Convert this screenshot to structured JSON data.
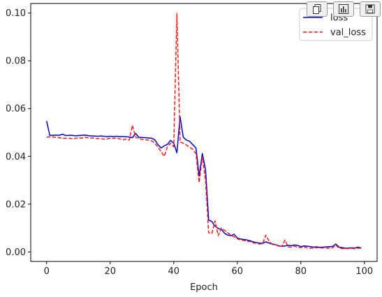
{
  "toolbar": {
    "buttons": [
      {
        "icon": "copy-icon"
      },
      {
        "icon": "bar-chart-icon"
      },
      {
        "icon": "save-icon"
      }
    ]
  },
  "chart_data": {
    "type": "line",
    "title": "",
    "xlabel": "Epoch",
    "ylabel": "",
    "xlim": [
      -5,
      104
    ],
    "ylim": [
      -0.004,
      0.104
    ],
    "xticks": [
      0,
      20,
      40,
      60,
      80,
      100
    ],
    "yticks": [
      0.0,
      0.02,
      0.04,
      0.06,
      0.08,
      0.1
    ],
    "xtick_labels": [
      "0",
      "20",
      "40",
      "60",
      "80",
      "100"
    ],
    "ytick_labels": [
      "0.00",
      "0.02",
      "0.04",
      "0.06",
      "0.08",
      "0.10"
    ],
    "grid": false,
    "legend_position": "top-right",
    "series": [
      {
        "name": "loss",
        "color": "#0000cc",
        "style": "solid",
        "x": [
          0,
          1,
          2,
          3,
          4,
          5,
          6,
          7,
          8,
          9,
          10,
          11,
          12,
          13,
          14,
          15,
          16,
          17,
          18,
          19,
          20,
          21,
          22,
          23,
          24,
          25,
          26,
          27,
          28,
          29,
          30,
          31,
          32,
          33,
          34,
          35,
          36,
          37,
          38,
          39,
          40,
          41,
          42,
          43,
          44,
          45,
          46,
          47,
          48,
          49,
          50,
          51,
          52,
          53,
          54,
          55,
          56,
          57,
          58,
          59,
          60,
          61,
          62,
          63,
          64,
          65,
          66,
          67,
          68,
          69,
          70,
          71,
          72,
          73,
          74,
          75,
          76,
          77,
          78,
          79,
          80,
          81,
          82,
          83,
          84,
          85,
          86,
          87,
          88,
          89,
          90,
          91,
          92,
          93,
          94,
          95,
          96,
          97,
          98,
          99
        ],
        "values": [
          0.0548,
          0.0488,
          0.0488,
          0.0489,
          0.0488,
          0.0493,
          0.0487,
          0.0488,
          0.0488,
          0.0486,
          0.0487,
          0.0488,
          0.0489,
          0.0487,
          0.0485,
          0.0485,
          0.0484,
          0.0485,
          0.0484,
          0.0483,
          0.0484,
          0.0483,
          0.0484,
          0.0483,
          0.0483,
          0.0482,
          0.0481,
          0.0478,
          0.0496,
          0.048,
          0.0479,
          0.0478,
          0.0477,
          0.0476,
          0.047,
          0.045,
          0.0435,
          0.0444,
          0.045,
          0.0467,
          0.0455,
          0.0415,
          0.0566,
          0.048,
          0.0468,
          0.0463,
          0.0449,
          0.0435,
          0.0317,
          0.0412,
          0.0345,
          0.0133,
          0.0127,
          0.0108,
          0.0098,
          0.0094,
          0.0078,
          0.007,
          0.0068,
          0.0074,
          0.0058,
          0.0054,
          0.0052,
          0.005,
          0.0047,
          0.0042,
          0.0039,
          0.0037,
          0.0036,
          0.0042,
          0.0037,
          0.0033,
          0.003,
          0.0025,
          0.0023,
          0.0025,
          0.0027,
          0.0026,
          0.0029,
          0.0027,
          0.0022,
          0.0025,
          0.0024,
          0.0022,
          0.002,
          0.0021,
          0.0019,
          0.002,
          0.0021,
          0.0022,
          0.0023,
          0.0033,
          0.002,
          0.0018,
          0.0015,
          0.0016,
          0.0017,
          0.0016,
          0.002,
          0.0016
        ]
      },
      {
        "name": "val_loss",
        "color": "#ff1a1a",
        "style": "dashed",
        "x": [
          0,
          1,
          2,
          3,
          4,
          5,
          6,
          7,
          8,
          9,
          10,
          11,
          12,
          13,
          14,
          15,
          16,
          17,
          18,
          19,
          20,
          21,
          22,
          23,
          24,
          25,
          26,
          27,
          28,
          29,
          30,
          31,
          32,
          33,
          34,
          35,
          36,
          37,
          38,
          39,
          40,
          41,
          42,
          43,
          44,
          45,
          46,
          47,
          48,
          49,
          50,
          51,
          52,
          53,
          54,
          55,
          56,
          57,
          58,
          59,
          60,
          61,
          62,
          63,
          64,
          65,
          66,
          67,
          68,
          69,
          70,
          71,
          72,
          73,
          74,
          75,
          76,
          77,
          78,
          79,
          80,
          81,
          82,
          83,
          84,
          85,
          86,
          87,
          88,
          89,
          90,
          91,
          92,
          93,
          94,
          95,
          96,
          97,
          98,
          99
        ],
        "values": [
          0.048,
          0.0482,
          0.0481,
          0.0479,
          0.0478,
          0.0476,
          0.0475,
          0.0476,
          0.0474,
          0.0475,
          0.0478,
          0.0476,
          0.048,
          0.0478,
          0.0476,
          0.0477,
          0.0474,
          0.0475,
          0.0472,
          0.0473,
          0.0476,
          0.0475,
          0.0477,
          0.0473,
          0.047,
          0.0472,
          0.0468,
          0.053,
          0.0481,
          0.0474,
          0.0471,
          0.047,
          0.0468,
          0.0466,
          0.0455,
          0.044,
          0.042,
          0.04,
          0.044,
          0.0455,
          0.044,
          0.0998,
          0.046,
          0.0455,
          0.0448,
          0.0438,
          0.043,
          0.041,
          0.029,
          0.0398,
          0.03,
          0.008,
          0.0077,
          0.013,
          0.0068,
          0.01,
          0.009,
          0.008,
          0.007,
          0.0063,
          0.0055,
          0.005,
          0.0048,
          0.0045,
          0.0043,
          0.0038,
          0.0036,
          0.0033,
          0.0035,
          0.007,
          0.0045,
          0.0031,
          0.003,
          0.0027,
          0.0023,
          0.005,
          0.0021,
          0.002,
          0.0024,
          0.0019,
          0.0018,
          0.0021,
          0.0017,
          0.0016,
          0.0015,
          0.0018,
          0.0016,
          0.0017,
          0.0015,
          0.0016,
          0.0017,
          0.0028,
          0.0016,
          0.0014,
          0.0013,
          0.0014,
          0.0015,
          0.0013,
          0.0016,
          0.0014
        ]
      }
    ]
  }
}
